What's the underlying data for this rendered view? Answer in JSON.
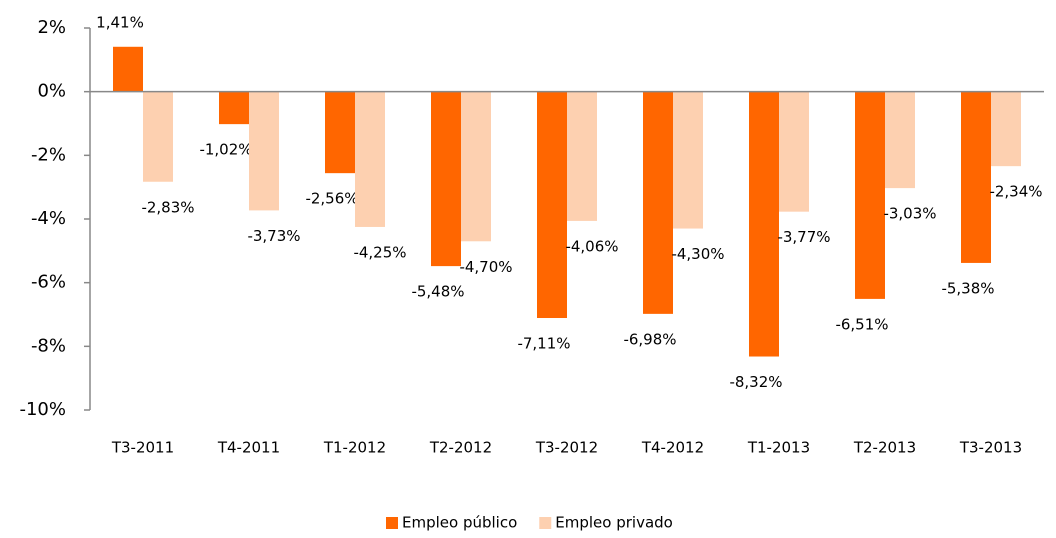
{
  "chart_data": {
    "type": "bar",
    "categories": [
      "T3-2011",
      "T4-2011",
      "T1-2012",
      "T2-2012",
      "T3-2012",
      "T4-2012",
      "T1-2013",
      "T2-2013",
      "T3-2013"
    ],
    "series": [
      {
        "name": "Empleo público",
        "color": "#ff6600",
        "values": [
          1.41,
          -1.02,
          -2.56,
          -5.48,
          -7.11,
          -6.98,
          -8.32,
          -6.51,
          -5.38
        ],
        "value_labels": [
          "1,41%",
          "-1,02%",
          "-2,56%",
          "-5,48%",
          "-7,11%",
          "-6,98%",
          "-8,32%",
          "-6,51%",
          "-5,38%"
        ]
      },
      {
        "name": "Empleo privado",
        "color": "#fdd0b0",
        "values": [
          -2.83,
          -3.73,
          -4.25,
          -4.7,
          -4.06,
          -4.3,
          -3.77,
          -3.03,
          -2.34
        ],
        "value_labels": [
          "-2,83%",
          "-3,73%",
          "-4,25%",
          "-4,70%",
          "-4,06%",
          "-4,30%",
          "-3,77%",
          "-3,03%",
          "-2,34%"
        ]
      }
    ],
    "ylim": [
      -10,
      2
    ],
    "yticks": [
      {
        "value": 2,
        "label": "2%"
      },
      {
        "value": 0,
        "label": "0%"
      },
      {
        "value": -2,
        "label": "-2%"
      },
      {
        "value": -4,
        "label": "-4%"
      },
      {
        "value": -6,
        "label": "-6%"
      },
      {
        "value": -8,
        "label": "-8%"
      },
      {
        "value": -10,
        "label": "-10%"
      }
    ],
    "legend": "bottom"
  }
}
